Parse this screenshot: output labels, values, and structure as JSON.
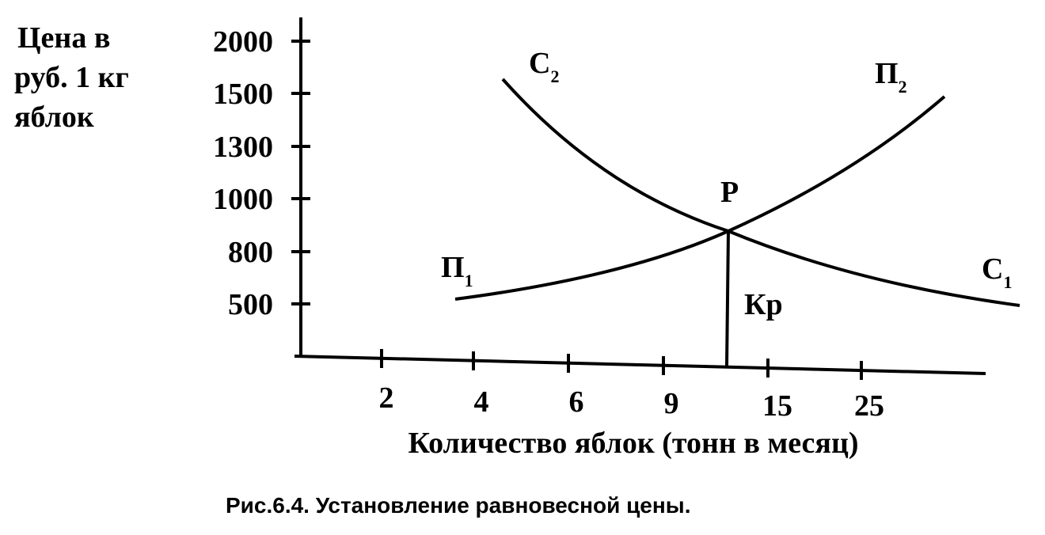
{
  "axis": {
    "y_label": [
      "Цена в",
      "руб. 1 кг",
      "яблок"
    ],
    "y_ticks": [
      "2000",
      "1500",
      "1300",
      "1000",
      "800",
      "500"
    ],
    "x_ticks": [
      "2",
      "4",
      "6",
      "9",
      "15",
      "25"
    ],
    "x_label": "Количество яблок (тонн в месяц)"
  },
  "curves": {
    "demand_left": {
      "text": "С",
      "sub": "2"
    },
    "demand_right": {
      "text": "С",
      "sub": "1"
    },
    "supply_left": {
      "text": "П",
      "sub": "1"
    },
    "supply_right": {
      "text": "П",
      "sub": "2"
    }
  },
  "points": {
    "equilibrium": "Р",
    "quantity": "Кр"
  },
  "caption": "Рис.6.4. Установление равновесной цены."
}
